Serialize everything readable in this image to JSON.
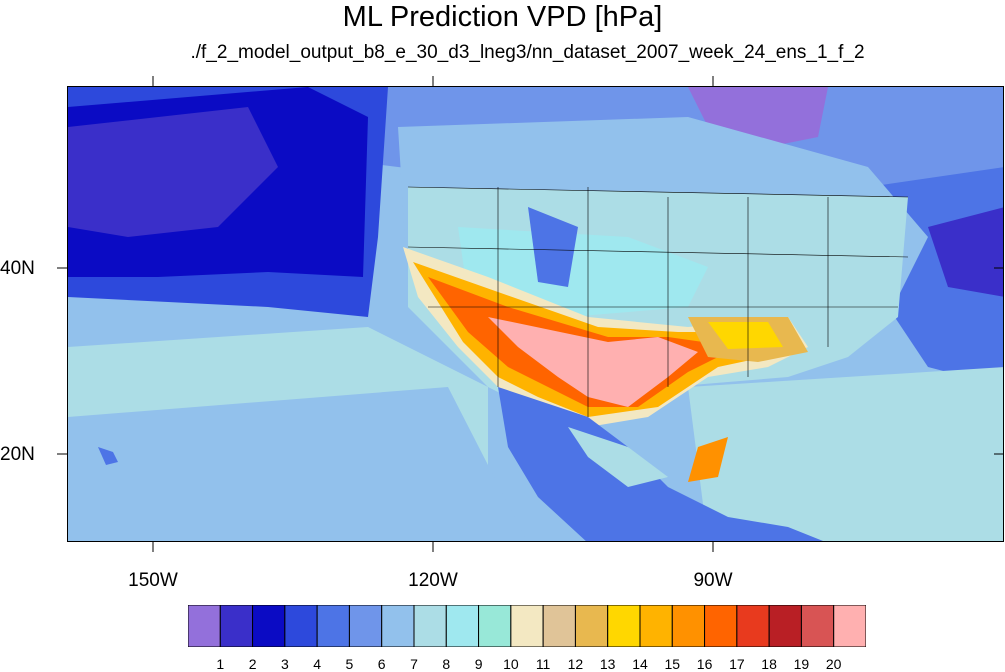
{
  "title": "ML Prediction VPD [hPa]",
  "subtitle": "./f_2_model_output_b8_e_30_d3_lneg3/nn_dataset_2007_week_24_ens_1_f_2",
  "axes": {
    "lat_labels": [
      "40N",
      "20N"
    ],
    "lon_labels": [
      "150W",
      "120W",
      "90W"
    ]
  },
  "colorbar": {
    "labels": [
      "1",
      "2",
      "3",
      "4",
      "5",
      "6",
      "7",
      "8",
      "9",
      "10",
      "11",
      "12",
      "13",
      "14",
      "15",
      "16",
      "17",
      "18",
      "19",
      "20"
    ],
    "colors": [
      "#9370db",
      "#3a2fc9",
      "#0b0bc4",
      "#2d49dc",
      "#4d74e6",
      "#6f95ea",
      "#92c1ec",
      "#acdde6",
      "#9fe8ef",
      "#98e8d8",
      "#f3e8c2",
      "#e0c498",
      "#e8b84f",
      "#ffd700",
      "#ffb300",
      "#ff9100",
      "#ff6400",
      "#e83a1e",
      "#b91f25",
      "#d85454",
      "#ffb0b0"
    ]
  },
  "regions": {
    "north_pacific_low": "#3a2fc9",
    "pacific_band": "#0b0bc4",
    "hudson_bay": "#9370db",
    "ocean_mid": "#6f95ea",
    "ocean_light": "#92c1ec",
    "gulf_water": "#acdde6",
    "desert_southwest": "#ffb0b0"
  }
}
